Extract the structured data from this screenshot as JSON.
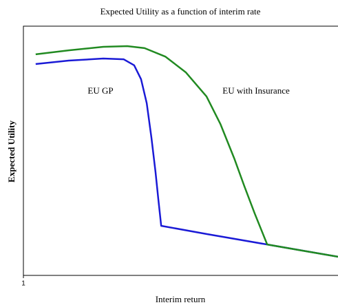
{
  "chart_data": {
    "type": "line",
    "title": "Expected Utility as a function of interim rate",
    "x_label": "Interim return",
    "y_label": "Expected Utility",
    "xlim": [
      1,
      2
    ],
    "xticks": [
      1
    ],
    "ylim": [
      0,
      100
    ],
    "annotations": [
      "EU GP",
      "EU with Insurance"
    ],
    "series": [
      {
        "name": "EU GP",
        "color": "#1a1ad6",
        "x": [
          1.039,
          1.144,
          1.254,
          1.319,
          1.352,
          1.374,
          1.392,
          1.407,
          1.42,
          1.429,
          1.438,
          1.582,
          1.775,
          2.0
        ],
        "values": [
          84.8,
          86.2,
          87.0,
          86.7,
          84.3,
          78.7,
          69.1,
          55.2,
          41.4,
          30.4,
          19.9,
          16.6,
          12.4,
          7.5
        ]
      },
      {
        "name": "EU with Insurance",
        "color": "#218a21",
        "x": [
          1.039,
          1.144,
          1.254,
          1.33,
          1.385,
          1.451,
          1.516,
          1.582,
          1.626,
          1.67,
          1.702,
          1.735,
          1.775,
          1.888,
          2.0
        ],
        "values": [
          88.7,
          90.3,
          91.7,
          92.0,
          91.2,
          87.8,
          81.5,
          71.8,
          60.8,
          47.0,
          35.9,
          24.9,
          12.4,
          9.9,
          7.5
        ]
      }
    ]
  }
}
